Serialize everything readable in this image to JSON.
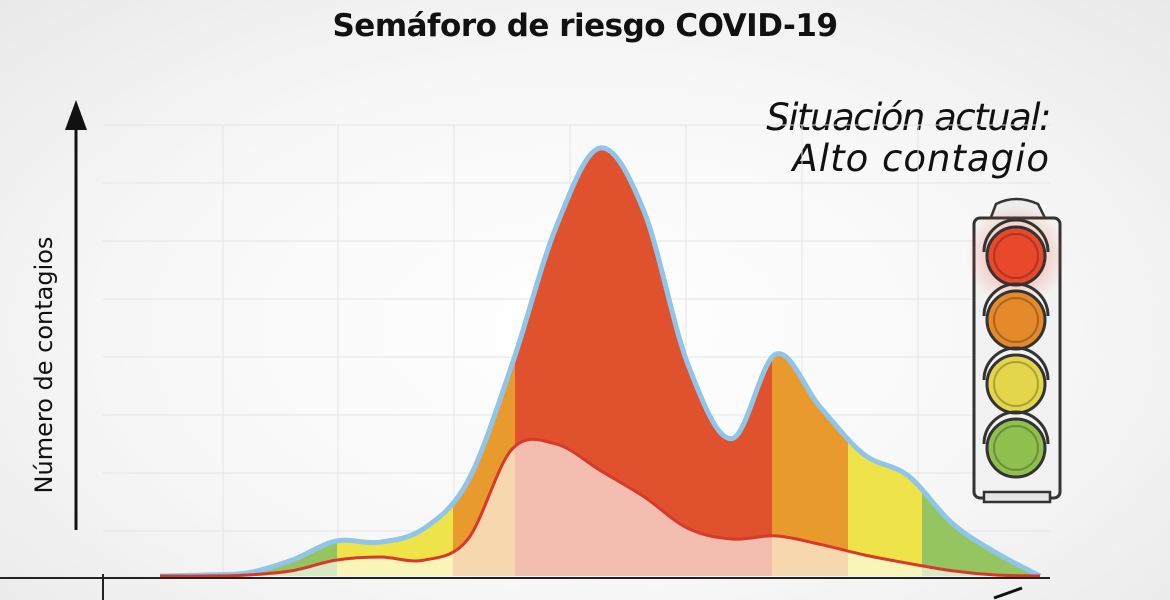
{
  "title": "Semáforo de riesgo COVID-19",
  "status": {
    "heading": "Situación actual:",
    "value": "Alto contagio"
  },
  "colors": {
    "red": "#e0512e",
    "orange": "#e99a2c",
    "yellow": "#efe34a",
    "green": "#95c561",
    "outline": "#8ec5e8",
    "baseline_curve": "#d9392a",
    "grid": "#e4e4e4"
  },
  "traffic_light": {
    "lights": [
      "red-light-icon",
      "orange-light-icon",
      "yellow-light-icon",
      "green-light-icon"
    ],
    "active": "red"
  },
  "chart_data": {
    "type": "area",
    "title": "Semáforo de riesgo COVID-19",
    "ylabel": "Número de contagios",
    "xlabel": "",
    "grid": true,
    "series": [
      {
        "values": [
          0,
          1,
          3,
          15,
          33,
          32,
          45,
          90,
          200,
          330,
          405,
          345,
          200,
          130,
          210,
          160,
          115,
          95,
          50,
          22,
          0
        ],
        "zones": [
          "green",
          "yellow",
          "orange",
          "red",
          "orange",
          "yellow",
          "green"
        ]
      },
      {
        "values": [
          0,
          0,
          1,
          5,
          15,
          18,
          15,
          35,
          120,
          125,
          100,
          75,
          45,
          35,
          38,
          30,
          20,
          12,
          5,
          1,
          0
        ]
      }
    ]
  }
}
